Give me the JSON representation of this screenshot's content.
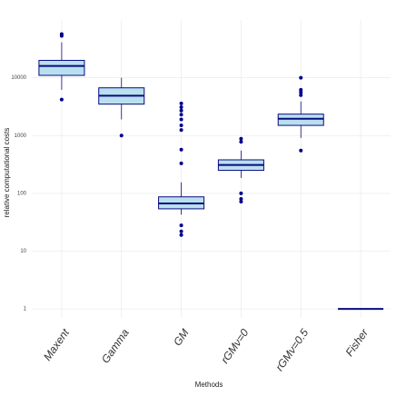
{
  "chart_data": {
    "type": "box",
    "x_label": "Methods",
    "y_label": "relative computational costs",
    "categories": [
      "Maxent",
      "Gamma",
      "GM",
      "rGMν=0",
      "rGMν=0.5",
      "Fisher"
    ],
    "log_y": true,
    "grid": true,
    "box_color": "#b9e0ee",
    "line_color": "#0a0a80",
    "outlier_color": "#00008b",
    "ylim": [
      0.7,
      100000
    ],
    "yticks": [
      1,
      10,
      100,
      1000,
      10000
    ],
    "boxes": [
      {
        "low": 6200,
        "q1": 11000,
        "median": 16000,
        "q3": 20000,
        "high": 41000,
        "outliers": [
          53000,
          57000,
          4200
        ]
      },
      {
        "low": 1900,
        "q1": 3500,
        "median": 4900,
        "q3": 6700,
        "high": 10000,
        "outliers": [
          1000
        ]
      },
      {
        "low": 43,
        "q1": 54,
        "median": 67,
        "q3": 87,
        "high": 155,
        "outliers": [
          330,
          570,
          1250,
          1500,
          1900,
          2300,
          2700,
          3100,
          3600,
          28,
          22,
          19
        ]
      },
      {
        "low": 185,
        "q1": 250,
        "median": 310,
        "q3": 380,
        "high": 550,
        "outliers": [
          880,
          780,
          100,
          80,
          72
        ]
      },
      {
        "low": 910,
        "q1": 1500,
        "median": 1950,
        "q3": 2350,
        "high": 3900,
        "outliers": [
          10000,
          6200,
          5600,
          5000,
          550
        ]
      },
      {
        "low": 1,
        "q1": 1,
        "median": 1,
        "q3": 1,
        "high": 1,
        "outliers": []
      }
    ]
  }
}
